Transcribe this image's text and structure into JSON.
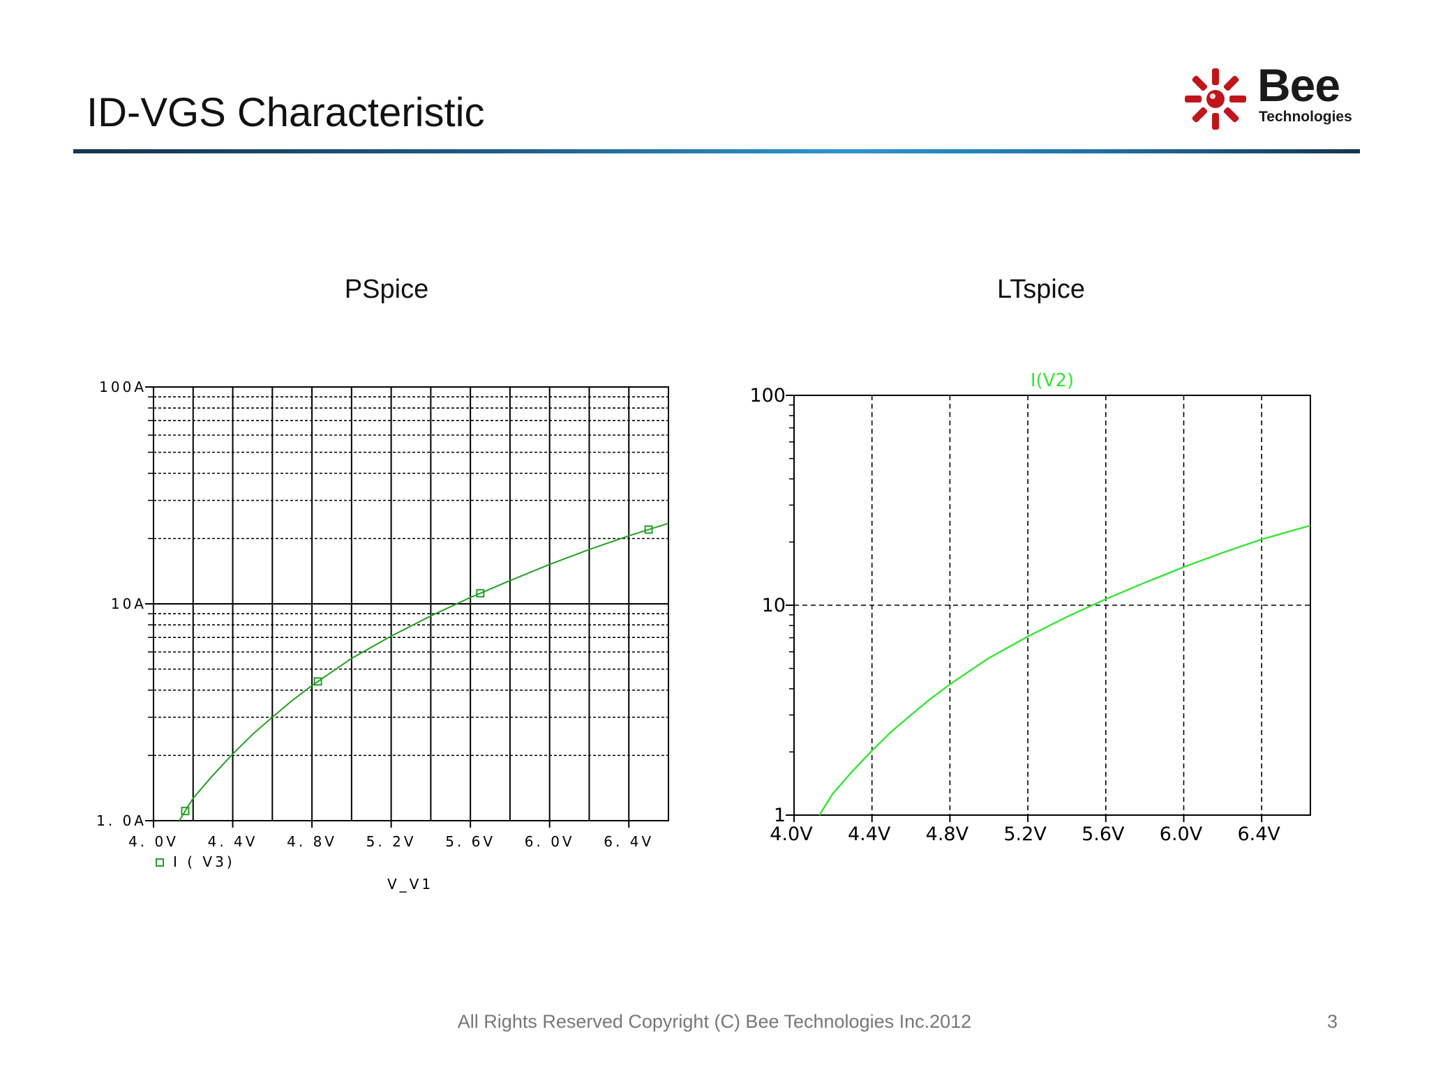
{
  "slide": {
    "title": "ID-VGS Characteristic",
    "logo_word": "Bee",
    "logo_sub": "Technologies",
    "footer": "All Rights Reserved Copyright (C) Bee Technologies Inc.2012",
    "page_number": "3",
    "accent_color": "#c0151b",
    "rule_color": "#2c95cf"
  },
  "panels": {
    "left_title": "PSpice",
    "right_title": "LTspice"
  },
  "chart_data": [
    {
      "type": "line",
      "name": "pspice",
      "xlabel": "V_V1",
      "ylabel": "",
      "xlim": [
        4.0,
        6.6
      ],
      "ylim": [
        1,
        100
      ],
      "y_scale": "log",
      "x_ticks": [
        4.0,
        4.4,
        4.8,
        5.2,
        5.6,
        6.0,
        6.4
      ],
      "x_tick_labels": [
        "4. 0V",
        "4. 4V",
        "4. 8V",
        "5. 2V",
        "5. 6V",
        "6. 0V",
        "6. 4V"
      ],
      "y_ticks": [
        1,
        10,
        100
      ],
      "y_tick_labels": [
        "1. 0A",
        "10A",
        "100A"
      ],
      "grid": true,
      "legend_position": "bottom-left",
      "line_color": "#22a122",
      "series": [
        {
          "name": "I ( V3)",
          "x": [
            4.13,
            4.2,
            4.3,
            4.4,
            4.5,
            4.6,
            4.7,
            4.8,
            5.0,
            5.2,
            5.4,
            5.6,
            5.8,
            6.0,
            6.2,
            6.4,
            6.6
          ],
          "y": [
            1.0,
            1.27,
            1.62,
            2.03,
            2.5,
            3.0,
            3.58,
            4.2,
            5.6,
            7.1,
            8.8,
            10.7,
            12.8,
            15.2,
            17.8,
            20.6,
            23.5
          ]
        }
      ],
      "markers_x": [
        4.16,
        4.83,
        5.65,
        6.5
      ]
    },
    {
      "type": "line",
      "name": "ltspice",
      "xlabel": "",
      "ylabel": "",
      "xlim": [
        4.0,
        6.65
      ],
      "ylim": [
        1,
        100
      ],
      "y_scale": "log",
      "x_ticks": [
        4.0,
        4.4,
        4.8,
        5.2,
        5.6,
        6.0,
        6.4
      ],
      "x_tick_labels": [
        "4.0V",
        "4.4V",
        "4.8V",
        "5.2V",
        "5.6V",
        "6.0V",
        "6.4V"
      ],
      "y_ticks": [
        1,
        10,
        100
      ],
      "y_tick_labels": [
        "1",
        "10",
        "100"
      ],
      "grid": true,
      "legend_position": "top-center",
      "line_color": "#33e633",
      "series": [
        {
          "name": "I(V2)",
          "x": [
            4.13,
            4.2,
            4.3,
            4.4,
            4.5,
            4.6,
            4.7,
            4.8,
            5.0,
            5.2,
            5.4,
            5.6,
            5.8,
            6.0,
            6.2,
            6.4,
            6.65
          ],
          "y": [
            1.0,
            1.27,
            1.62,
            2.03,
            2.5,
            3.0,
            3.58,
            4.2,
            5.6,
            7.1,
            8.8,
            10.7,
            12.8,
            15.2,
            17.8,
            20.6,
            24.0
          ]
        }
      ]
    }
  ]
}
